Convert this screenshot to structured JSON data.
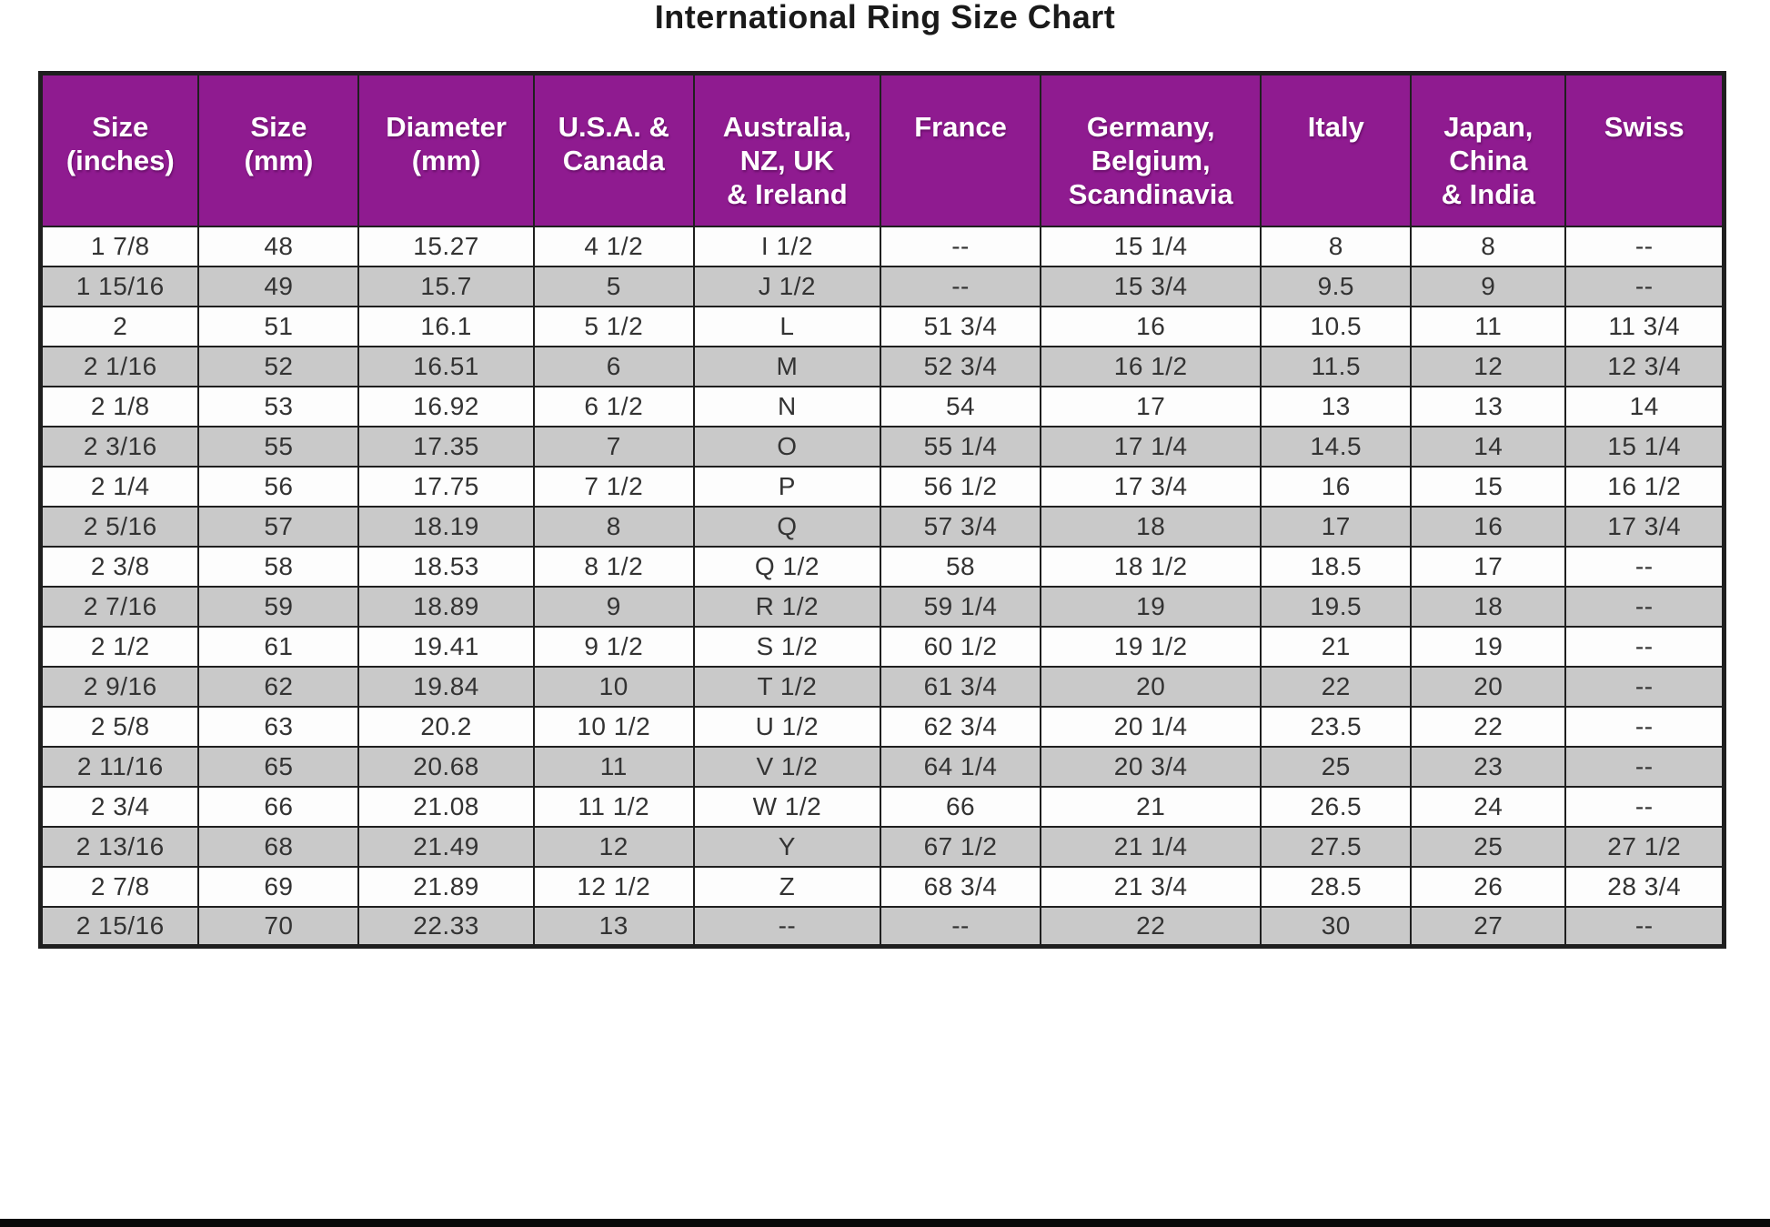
{
  "title": "International Ring Size Chart",
  "table": {
    "headers": [
      "Size\n(inches)",
      "Size\n(mm)",
      "Diameter\n(mm)",
      "U.S.A. &\nCanada",
      "Australia,\nNZ, UK\n& Ireland",
      "France",
      "Germany,\nBelgium,\nScandinavia",
      "Italy",
      "Japan,\nChina\n& India",
      "Swiss"
    ]
  },
  "chart_data": {
    "type": "table",
    "title": "International Ring Size Chart",
    "columns": [
      "Size (inches)",
      "Size (mm)",
      "Diameter (mm)",
      "U.S.A. & Canada",
      "Australia, NZ, UK & Ireland",
      "France",
      "Germany, Belgium, Scandinavia",
      "Italy",
      "Japan, China & India",
      "Swiss"
    ],
    "rows": [
      [
        "1 7/8",
        "48",
        "15.27",
        "4 1/2",
        "I 1/2",
        "--",
        "15 1/4",
        "8",
        "8",
        "--"
      ],
      [
        "1 15/16",
        "49",
        "15.7",
        "5",
        "J 1/2",
        "--",
        "15 3/4",
        "9.5",
        "9",
        "--"
      ],
      [
        "2",
        "51",
        "16.1",
        "5 1/2",
        "L",
        "51 3/4",
        "16",
        "10.5",
        "11",
        "11 3/4"
      ],
      [
        "2 1/16",
        "52",
        "16.51",
        "6",
        "M",
        "52 3/4",
        "16 1/2",
        "11.5",
        "12",
        "12 3/4"
      ],
      [
        "2 1/8",
        "53",
        "16.92",
        "6 1/2",
        "N",
        "54",
        "17",
        "13",
        "13",
        "14"
      ],
      [
        "2 3/16",
        "55",
        "17.35",
        "7",
        "O",
        "55 1/4",
        "17 1/4",
        "14.5",
        "14",
        "15 1/4"
      ],
      [
        "2 1/4",
        "56",
        "17.75",
        "7 1/2",
        "P",
        "56 1/2",
        "17 3/4",
        "16",
        "15",
        "16 1/2"
      ],
      [
        "2 5/16",
        "57",
        "18.19",
        "8",
        "Q",
        "57 3/4",
        "18",
        "17",
        "16",
        "17 3/4"
      ],
      [
        "2 3/8",
        "58",
        "18.53",
        "8 1/2",
        "Q 1/2",
        "58",
        "18 1/2",
        "18.5",
        "17",
        "--"
      ],
      [
        "2 7/16",
        "59",
        "18.89",
        "9",
        "R 1/2",
        "59 1/4",
        "19",
        "19.5",
        "18",
        "--"
      ],
      [
        "2 1/2",
        "61",
        "19.41",
        "9 1/2",
        "S 1/2",
        "60 1/2",
        "19 1/2",
        "21",
        "19",
        "--"
      ],
      [
        "2 9/16",
        "62",
        "19.84",
        "10",
        "T 1/2",
        "61 3/4",
        "20",
        "22",
        "20",
        "--"
      ],
      [
        "2 5/8",
        "63",
        "20.2",
        "10 1/2",
        "U 1/2",
        "62 3/4",
        "20 1/4",
        "23.5",
        "22",
        "--"
      ],
      [
        "2 11/16",
        "65",
        "20.68",
        "11",
        "V 1/2",
        "64 1/4",
        "20 3/4",
        "25",
        "23",
        "--"
      ],
      [
        "2 3/4",
        "66",
        "21.08",
        "11 1/2",
        "W 1/2",
        "66",
        "21",
        "26.5",
        "24",
        "--"
      ],
      [
        "2 13/16",
        "68",
        "21.49",
        "12",
        "Y",
        "67 1/2",
        "21 1/4",
        "27.5",
        "25",
        "27 1/2"
      ],
      [
        "2 7/8",
        "69",
        "21.89",
        "12 1/2",
        "Z",
        "68 3/4",
        "21 3/4",
        "28.5",
        "26",
        "28 3/4"
      ],
      [
        "2 15/16",
        "70",
        "22.33",
        "13",
        "--",
        "--",
        "22",
        "30",
        "27",
        "--"
      ]
    ]
  },
  "colors": {
    "header_bg": "#8F1B90",
    "header_text": "#FFFFFF",
    "row_bg": "#FDFDFD",
    "row_alt_bg": "#C9C9C9",
    "border": "#1F1F1F",
    "cell_text": "#333333",
    "title_text": "#1A1A1A"
  }
}
